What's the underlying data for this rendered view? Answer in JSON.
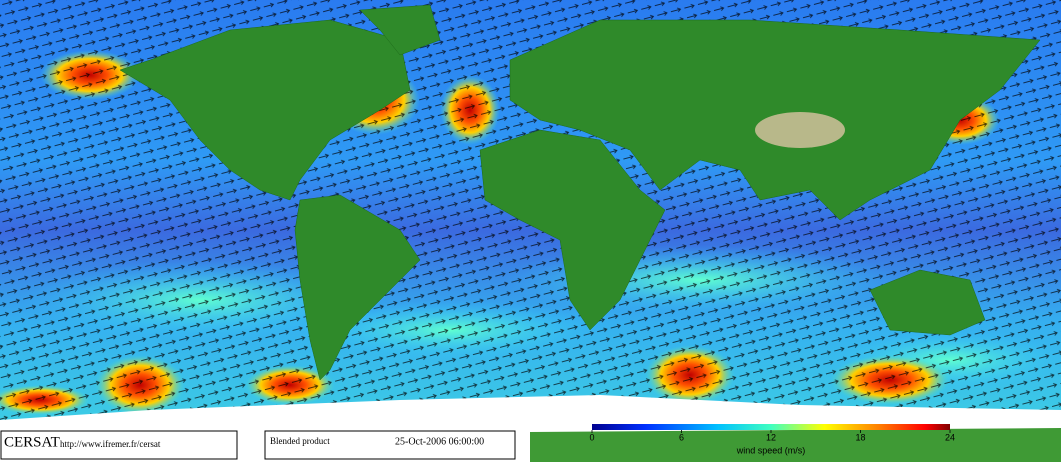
{
  "footer": {
    "logo": "CERSAT",
    "url": "http://www.ifremer.fr/cersat",
    "product": "Blended product",
    "datetime": "25-Oct-2006 06:00:00"
  },
  "colorbar": {
    "label": "wind speed (m/s)",
    "lim": [
      0,
      24
    ],
    "ticks": [
      0,
      6,
      12,
      18,
      24
    ]
  }
}
